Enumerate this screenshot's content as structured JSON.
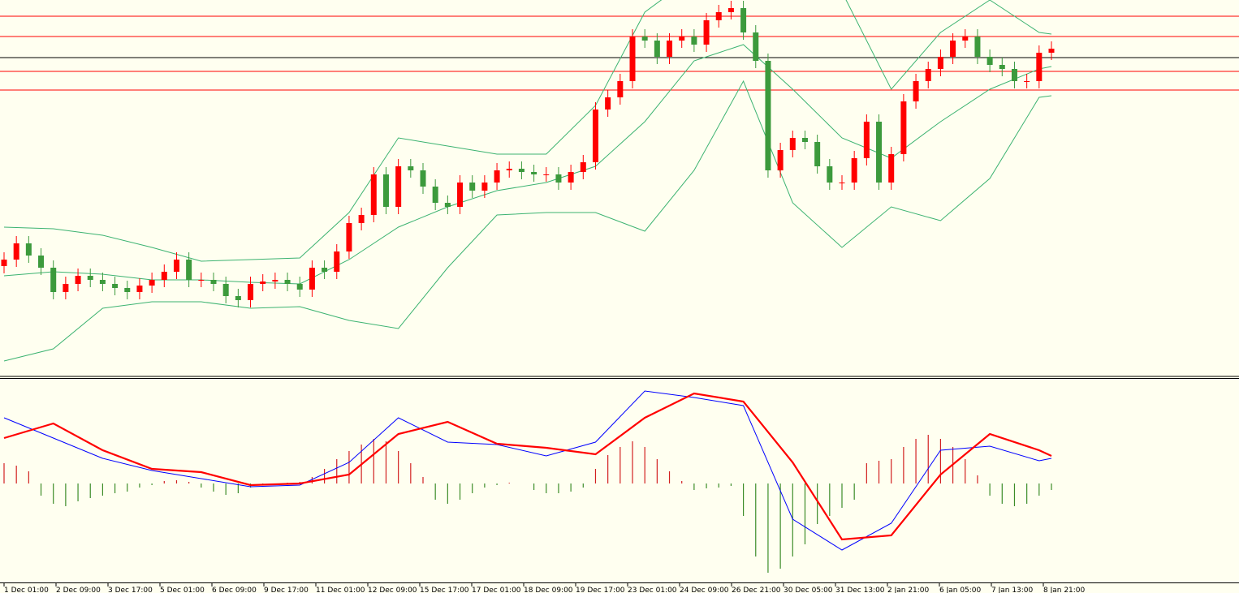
{
  "chart_data": [
    {
      "type": "candlestick",
      "up_color": "#ff0000",
      "down_color": "#3c9a3c",
      "ylim": [
        0,
        463
      ],
      "open": [
        135,
        143,
        163,
        148,
        133,
        103,
        113,
        123,
        118,
        113,
        108,
        103,
        111,
        118,
        128,
        143,
        118,
        118,
        113,
        98,
        93,
        113,
        116,
        118,
        113,
        106,
        133,
        128,
        153,
        188,
        198,
        248,
        208,
        258,
        253,
        233,
        213,
        208,
        238,
        228,
        238,
        253,
        255,
        251,
        248,
        248,
        238,
        251,
        263,
        328,
        343,
        363,
        418,
        413,
        393,
        413,
        418,
        408,
        438,
        448,
        453,
        423,
        388,
        253,
        278,
        293,
        288,
        258,
        238,
        238,
        268,
        313,
        238,
        273,
        338,
        363,
        378,
        393,
        413,
        418,
        393,
        383,
        378,
        363,
        363,
        398
      ],
      "high": [
        152,
        172,
        172,
        157,
        142,
        122,
        132,
        132,
        127,
        122,
        117,
        120,
        127,
        137,
        152,
        152,
        127,
        127,
        122,
        107,
        122,
        125,
        127,
        127,
        122,
        142,
        142,
        162,
        197,
        207,
        257,
        257,
        267,
        267,
        262,
        242,
        222,
        247,
        247,
        247,
        262,
        264,
        264,
        260,
        257,
        257,
        260,
        272,
        337,
        352,
        372,
        427,
        427,
        422,
        422,
        427,
        427,
        447,
        457,
        462,
        462,
        432,
        397,
        287,
        302,
        302,
        297,
        267,
        247,
        277,
        322,
        322,
        282,
        347,
        372,
        387,
        402,
        422,
        427,
        427,
        402,
        392,
        387,
        372,
        407,
        412
      ],
      "low": [
        126,
        134,
        139,
        124,
        94,
        94,
        104,
        109,
        104,
        99,
        94,
        94,
        102,
        109,
        119,
        109,
        109,
        104,
        89,
        84,
        84,
        104,
        107,
        104,
        97,
        97,
        119,
        119,
        144,
        179,
        189,
        199,
        199,
        244,
        224,
        204,
        199,
        199,
        219,
        219,
        229,
        244,
        242,
        239,
        239,
        229,
        229,
        242,
        254,
        319,
        334,
        354,
        404,
        384,
        384,
        404,
        399,
        399,
        429,
        439,
        414,
        379,
        244,
        244,
        269,
        279,
        249,
        229,
        229,
        229,
        259,
        229,
        229,
        264,
        329,
        354,
        369,
        384,
        404,
        384,
        374,
        369,
        354,
        354,
        354,
        389
      ],
      "close": [
        143,
        163,
        148,
        133,
        103,
        113,
        123,
        118,
        113,
        108,
        103,
        111,
        118,
        128,
        143,
        118,
        118,
        113,
        98,
        93,
        113,
        116,
        118,
        113,
        106,
        133,
        128,
        153,
        188,
        198,
        248,
        208,
        258,
        253,
        233,
        213,
        208,
        238,
        228,
        238,
        253,
        255,
        251,
        248,
        248,
        238,
        251,
        263,
        328,
        343,
        363,
        418,
        413,
        393,
        413,
        418,
        408,
        438,
        448,
        453,
        423,
        388,
        253,
        278,
        293,
        288,
        258,
        238,
        238,
        268,
        313,
        238,
        273,
        338,
        363,
        378,
        393,
        413,
        418,
        393,
        383,
        378,
        363,
        363,
        398,
        403
      ],
      "hlines": {
        "values": [
          443,
          418,
          375,
          352
        ],
        "color": "#ff0000"
      },
      "level": {
        "value": 392,
        "color": "#000000"
      },
      "bands": {
        "color": "#3cb371",
        "x": [
          0,
          4,
          8,
          12,
          16,
          20,
          24,
          28,
          32,
          36,
          40,
          44,
          48,
          52,
          56,
          60,
          64,
          68,
          72,
          76,
          80,
          84,
          85
        ],
        "upper": [
          183,
          181,
          173,
          158,
          141,
          143,
          145,
          201,
          293,
          283,
          273,
          273,
          333,
          448,
          493,
          503,
          493,
          473,
          353,
          423,
          463,
          423,
          421
        ],
        "middle": [
          123,
          128,
          125,
          118,
          118,
          115,
          113,
          143,
          183,
          208,
          228,
          238,
          258,
          313,
          388,
          408,
          353,
          293,
          268,
          313,
          353,
          378,
          381
        ],
        "lower": [
          18,
          33,
          83,
          91,
          91,
          83,
          85,
          68,
          58,
          133,
          198,
          201,
          201,
          178,
          253,
          363,
          213,
          158,
          208,
          191,
          243,
          343,
          345
        ]
      }
    },
    {
      "type": "macd",
      "ylim": [
        -122,
        129
      ],
      "histogram": {
        "up_color": "#d22020",
        "down_color": "#3c8c28",
        "values": [
          25,
          22,
          15,
          -15,
          -25,
          -28,
          -22,
          -18,
          -15,
          -12,
          -10,
          -5,
          -2,
          3,
          4,
          2,
          -5,
          -10,
          -14,
          -12,
          -5,
          -2,
          0,
          1,
          2,
          8,
          18,
          30,
          40,
          48,
          55,
          52,
          40,
          25,
          8,
          -20,
          -25,
          -20,
          -12,
          -5,
          -2,
          1,
          0,
          -8,
          -12,
          -12,
          -10,
          -5,
          18,
          35,
          45,
          52,
          45,
          30,
          15,
          3,
          -8,
          -6,
          -5,
          -3,
          -40,
          -90,
          -110,
          -105,
          -90,
          -75,
          -50,
          -40,
          -30,
          -20,
          25,
          28,
          30,
          45,
          55,
          60,
          55,
          45,
          30,
          10,
          -15,
          -25,
          -28,
          -25,
          -15,
          -8
        ]
      },
      "x": [
        0,
        4,
        8,
        12,
        16,
        20,
        24,
        28,
        32,
        36,
        40,
        44,
        48,
        52,
        56,
        60,
        64,
        68,
        72,
        76,
        80,
        84,
        85
      ],
      "macd": {
        "color": "#0000ff",
        "values": [
          81,
          56,
          31,
          16,
          6,
          -4,
          -2,
          26,
          81,
          51,
          48,
          34,
          51,
          114,
          106,
          96,
          -44,
          -82,
          -49,
          41,
          46,
          28,
          31
        ]
      },
      "signal": {
        "color": "#ff0000",
        "values": [
          56,
          74,
          41,
          18,
          14,
          -2,
          0,
          11,
          61,
          76,
          49,
          44,
          36,
          81,
          111,
          101,
          26,
          -69,
          -64,
          11,
          61,
          41,
          34
        ]
      },
      "categories": [
        "1 Dec 01:00",
        "2 Dec 09:00",
        "3 Dec 17:00",
        "5 Dec 01:00",
        "6 Dec 09:00",
        "9 Dec 17:00",
        "11 Dec 01:00",
        "12 Dec 09:00",
        "15 Dec 17:00",
        "17 Dec 01:00",
        "18 Dec 09:00",
        "19 Dec 17:00",
        "23 Dec 01:00",
        "24 Dec 09:00",
        "26 Dec 21:00",
        "30 Dec 05:00",
        "31 Dec 13:00",
        "2 Jan 21:00",
        "6 Jan 05:00",
        "7 Jan 13:00",
        "8 Jan 21:00"
      ]
    }
  ]
}
